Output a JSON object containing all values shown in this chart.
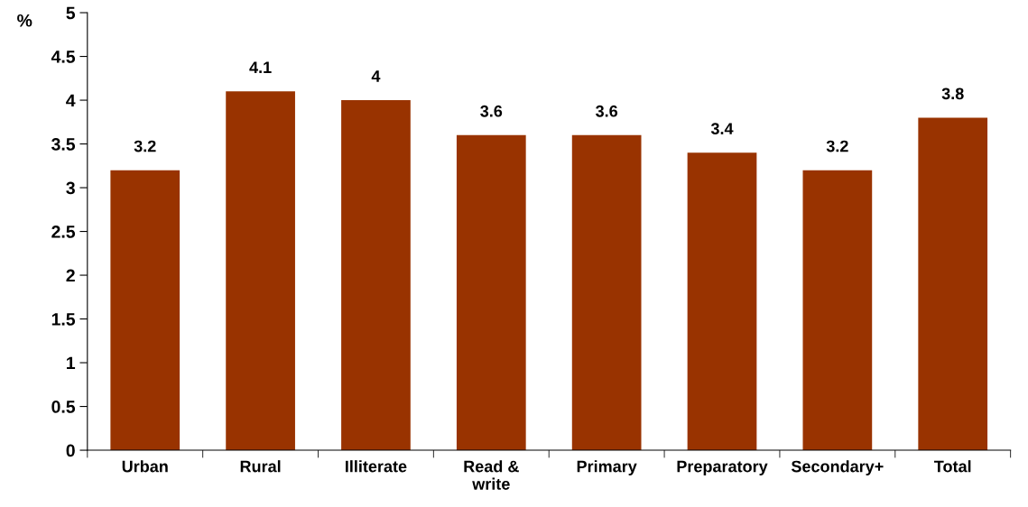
{
  "chart_data": {
    "type": "bar",
    "ylabel": "%",
    "categories": [
      "Urban",
      "Rural",
      "Illiterate",
      "Read &\nwrite",
      "Primary",
      "Preparatory",
      "Secondary+",
      "Total"
    ],
    "values": [
      3.2,
      4.1,
      4,
      3.6,
      3.6,
      3.4,
      3.2,
      3.8
    ],
    "color": "#993300",
    "ylim": [
      0,
      5
    ],
    "yticks": [
      0,
      0.5,
      1,
      1.5,
      2,
      2.5,
      3,
      3.5,
      4,
      4.5,
      5
    ],
    "data_labels": true,
    "grid": false,
    "legend": false
  }
}
